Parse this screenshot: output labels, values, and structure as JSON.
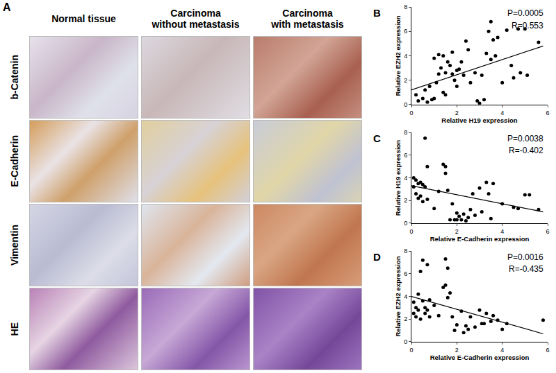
{
  "panel_a": {
    "label": "A",
    "columns": [
      "Normal tissue",
      "Carcinoma\nwithout metastasis",
      "Carcinoma\nwith metastasis"
    ],
    "rows": [
      "b-Catenin",
      "E-Cadherin",
      "Vimentin",
      "HE"
    ]
  },
  "chart_data": [
    {
      "type": "scatter",
      "panel": "B",
      "x_label": "Relative H19 expression",
      "y_label": "Relative EZH2 expression",
      "annotations": [
        "P=0.0005",
        "R=0.553"
      ],
      "color": "#000000",
      "marker": "circle",
      "line_style": "solid",
      "xlim": [
        0,
        6
      ],
      "xticks": [
        0,
        2,
        4,
        6
      ],
      "ylim": [
        0,
        8
      ],
      "yticks": [
        0,
        2,
        4,
        6,
        8
      ],
      "x": [
        0.2,
        0.3,
        0.5,
        0.6,
        0.7,
        0.8,
        0.9,
        1.0,
        1.0,
        1.1,
        1.2,
        1.2,
        1.3,
        1.4,
        1.4,
        1.5,
        1.5,
        1.6,
        1.7,
        1.8,
        1.8,
        1.9,
        2.0,
        2.0,
        2.1,
        2.2,
        2.3,
        2.4,
        2.5,
        2.6,
        2.8,
        2.9,
        3.0,
        3.1,
        3.2,
        3.3,
        3.4,
        3.5,
        3.5,
        3.6,
        3.7,
        3.8,
        4.0,
        4.2,
        4.4,
        4.5,
        4.7,
        4.8,
        5.0,
        5.1,
        5.6
      ],
      "y": [
        0.8,
        0.3,
        0.5,
        1.2,
        0.2,
        1.5,
        0.4,
        3.8,
        0.5,
        1.8,
        2.5,
        4.1,
        3.0,
        4.0,
        1.0,
        2.6,
        0.8,
        3.5,
        3.2,
        4.3,
        2.5,
        2.0,
        2.8,
        1.5,
        2.9,
        3.5,
        2.4,
        5.2,
        4.5,
        1.8,
        2.6,
        0.3,
        0.1,
        2.4,
        0.4,
        4.2,
        6.0,
        6.8,
        3.7,
        5.3,
        4.0,
        5.5,
        1.8,
        6.1,
        3.2,
        2.2,
        6.2,
        2.6,
        6.2,
        2.4,
        5.1
      ],
      "fit_line": {
        "x": [
          0,
          5.8
        ],
        "y": [
          1.2,
          4.8
        ]
      }
    },
    {
      "type": "scatter",
      "panel": "C",
      "x_label": "Relative E-Cadherin expression",
      "y_label": "Relative H19 expression",
      "annotations": [
        "P=0.0038",
        "R=-0.402"
      ],
      "color": "#000000",
      "marker": "circle",
      "line_style": "solid",
      "xlim": [
        0,
        6
      ],
      "xticks": [
        0,
        2,
        4,
        6
      ],
      "ylim": [
        0,
        8
      ],
      "yticks": [
        0,
        2,
        4,
        6,
        8
      ],
      "x": [
        0.1,
        0.1,
        0.2,
        0.2,
        0.3,
        0.3,
        0.4,
        0.4,
        0.5,
        0.5,
        0.6,
        0.6,
        0.7,
        0.7,
        1.0,
        1.2,
        1.4,
        1.5,
        1.5,
        1.6,
        1.7,
        1.8,
        1.9,
        2.0,
        2.0,
        2.1,
        2.2,
        2.3,
        2.4,
        2.5,
        2.6,
        2.7,
        2.8,
        3.0,
        3.1,
        3.3,
        3.4,
        3.5,
        3.6,
        4.0,
        4.5,
        4.7,
        5.0,
        5.2,
        5.6
      ],
      "y": [
        4.0,
        3.2,
        2.6,
        3.8,
        3.5,
        2.2,
        3.6,
        2.4,
        3.4,
        1.9,
        7.5,
        3.2,
        5.0,
        2.1,
        1.3,
        2.8,
        5.2,
        5.0,
        4.4,
        2.9,
        0.3,
        1.7,
        0.3,
        0.9,
        0.3,
        0.6,
        0.3,
        0.8,
        0.2,
        0.5,
        1.2,
        2.6,
        0.7,
        3.1,
        1.0,
        3.6,
        2.6,
        0.4,
        3.5,
        1.7,
        1.4,
        1.3,
        2.5,
        2.5,
        1.2
      ],
      "fit_line": {
        "x": [
          0,
          5.8
        ],
        "y": [
          3.3,
          1.0
        ]
      }
    },
    {
      "type": "scatter",
      "panel": "D",
      "x_label": "Relative E-Cadherin expression",
      "y_label": "Relative EZH2 expression",
      "annotations": [
        "P=0.0016",
        "R=-0.435"
      ],
      "color": "#000000",
      "marker": "circle",
      "line_style": "solid",
      "xlim": [
        0,
        6
      ],
      "xticks": [
        0,
        2,
        4,
        6
      ],
      "ylim": [
        0,
        8
      ],
      "yticks": [
        0,
        2,
        4,
        6,
        8
      ],
      "x": [
        0.1,
        0.1,
        0.2,
        0.2,
        0.3,
        0.3,
        0.4,
        0.4,
        0.5,
        0.5,
        0.6,
        0.6,
        0.7,
        0.7,
        0.8,
        0.8,
        1.0,
        1.2,
        1.4,
        1.5,
        1.5,
        1.6,
        1.6,
        1.7,
        1.8,
        1.9,
        2.0,
        2.2,
        2.3,
        2.4,
        2.5,
        2.6,
        2.8,
        3.0,
        3.1,
        3.2,
        3.3,
        3.5,
        3.6,
        3.8,
        4.0,
        4.2,
        5.8
      ],
      "y": [
        3.5,
        2.5,
        3.0,
        2.2,
        4.2,
        2.8,
        6.2,
        2.0,
        7.2,
        3.6,
        3.0,
        2.5,
        6.8,
        2.8,
        3.7,
        2.2,
        3.2,
        2.3,
        4.8,
        7.3,
        5.0,
        6.5,
        3.9,
        4.3,
        2.2,
        1.0,
        1.5,
        2.7,
        0.8,
        1.4,
        1.1,
        2.2,
        1.3,
        2.8,
        1.6,
        1.6,
        2.5,
        1.8,
        2.3,
        1.9,
        1.1,
        1.6,
        1.9
      ],
      "fit_line": {
        "x": [
          0,
          5.8
        ],
        "y": [
          4.0,
          0.7
        ]
      }
    }
  ]
}
